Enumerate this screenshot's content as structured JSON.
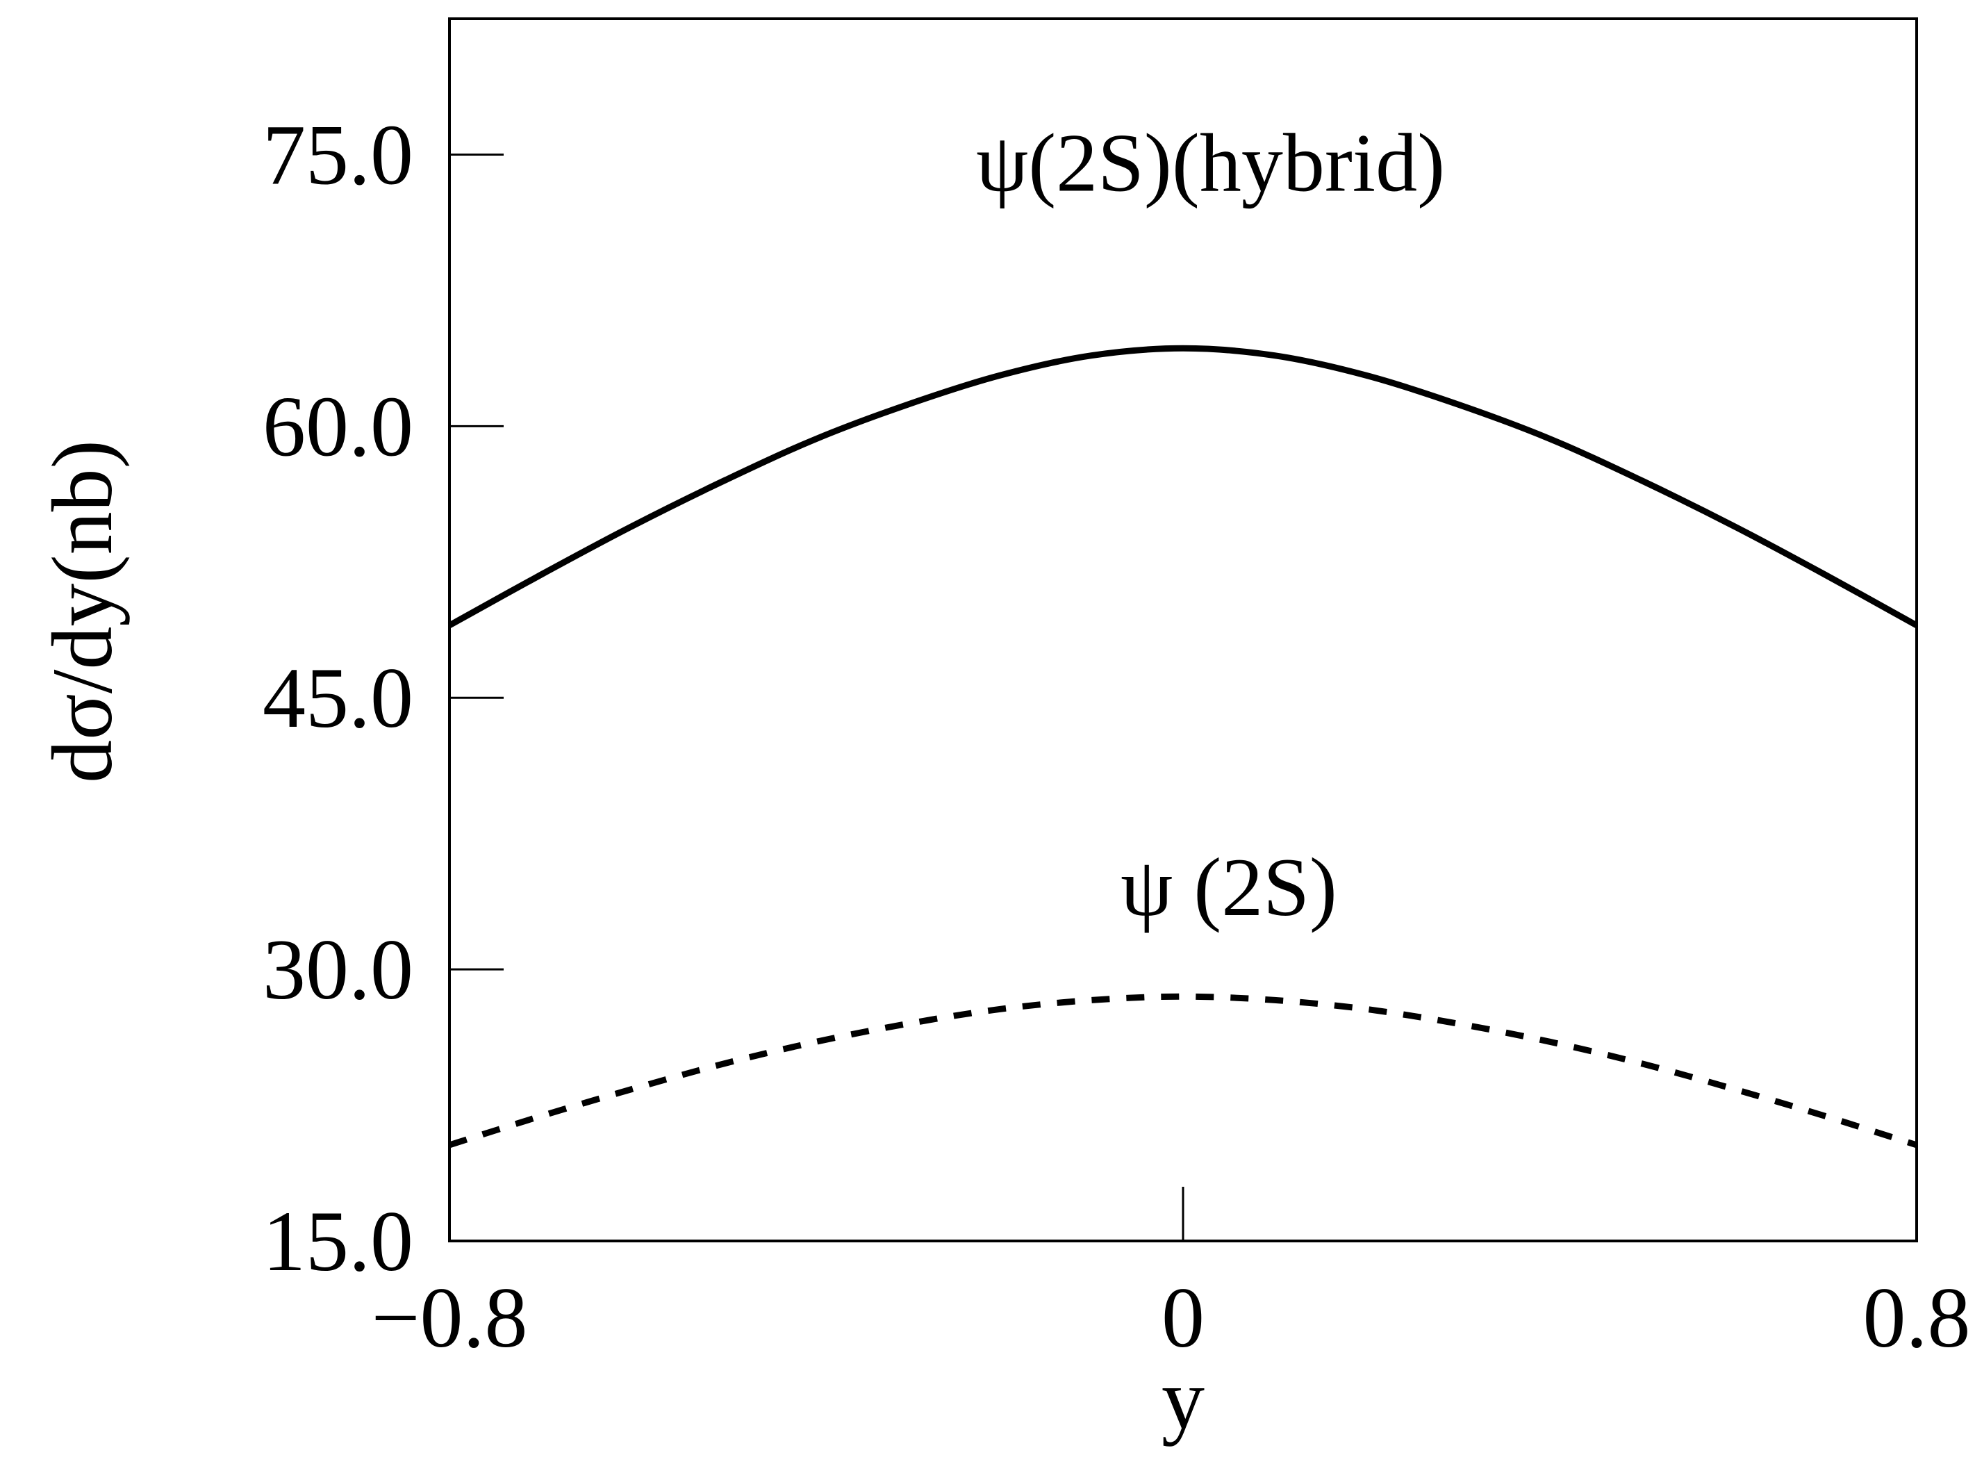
{
  "chart_data": {
    "type": "line",
    "xlabel": "y",
    "ylabel": "dσ/dy(nb)",
    "xlim": [
      -0.8,
      0.8
    ],
    "ylim": [
      15.0,
      82.5
    ],
    "xticks": [
      {
        "value": -0.8,
        "label": "−0.8"
      },
      {
        "value": 0,
        "label": "0"
      },
      {
        "value": 0.8,
        "label": "0.8"
      }
    ],
    "yticks": [
      {
        "value": 15.0,
        "label": "15.0"
      },
      {
        "value": 30.0,
        "label": "30.0"
      },
      {
        "value": 45.0,
        "label": "45.0"
      },
      {
        "value": 60.0,
        "label": "60.0"
      },
      {
        "value": 75.0,
        "label": "75.0"
      }
    ],
    "grid": false,
    "series": [
      {
        "name": "ψ(2S)(hybrid)",
        "style": "solid",
        "color": "#000000",
        "x": [
          -0.8,
          -0.7,
          -0.6,
          -0.5,
          -0.4,
          -0.3,
          -0.2,
          -0.1,
          0.0,
          0.1,
          0.2,
          0.3,
          0.4,
          0.5,
          0.6,
          0.7,
          0.8
        ],
        "y": [
          49.0,
          51.8,
          54.5,
          57.0,
          59.3,
          61.2,
          62.8,
          63.9,
          64.3,
          63.9,
          62.8,
          61.2,
          59.3,
          57.0,
          54.5,
          51.8,
          49.0
        ]
      },
      {
        "name": "ψ (2S)",
        "style": "dashed",
        "color": "#000000",
        "x": [
          -0.8,
          -0.7,
          -0.6,
          -0.5,
          -0.4,
          -0.3,
          -0.2,
          -0.1,
          0.0,
          0.1,
          0.2,
          0.3,
          0.4,
          0.5,
          0.6,
          0.7,
          0.8
        ],
        "y": [
          20.3,
          21.9,
          23.4,
          24.8,
          26.0,
          27.0,
          27.8,
          28.3,
          28.5,
          28.3,
          27.8,
          27.0,
          26.0,
          24.8,
          23.4,
          21.9,
          20.3
        ]
      }
    ],
    "annotations": [
      {
        "text": "ψ(2S)(hybrid)",
        "x": 0.03,
        "y": 73.0
      },
      {
        "text": "ψ (2S)",
        "x": 0.05,
        "y": 33.0
      }
    ]
  }
}
